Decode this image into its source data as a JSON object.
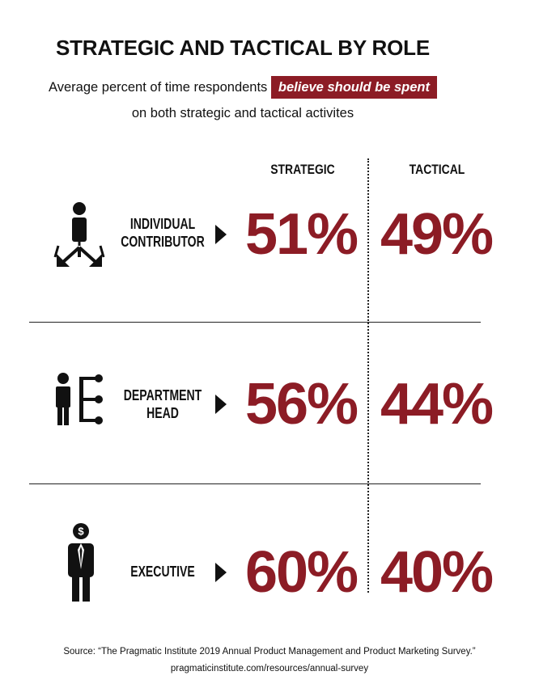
{
  "title": "STRATEGIC AND TACTICAL BY ROLE",
  "subtitle": {
    "before": "Average percent of time respondents",
    "highlight": "believe should be spent",
    "after": "on both strategic and tactical activites"
  },
  "colors": {
    "accent": "#8c1c25",
    "text": "#111111"
  },
  "chart_data": {
    "type": "table",
    "title": "STRATEGIC AND TACTICAL BY ROLE",
    "columns": [
      "STRATEGIC",
      "TACTICAL"
    ],
    "rows": [
      {
        "role_lines": [
          "INDIVIDUAL",
          "CONTRIBUTOR"
        ],
        "icon": "individual-contributor-icon",
        "values": [
          51,
          49
        ],
        "labels": [
          "51%",
          "49%"
        ]
      },
      {
        "role_lines": [
          "DEPARTMENT",
          "HEAD"
        ],
        "icon": "department-head-icon",
        "values": [
          56,
          44
        ],
        "labels": [
          "56%",
          "44%"
        ]
      },
      {
        "role_lines": [
          "EXECUTIVE"
        ],
        "icon": "executive-icon",
        "values": [
          60,
          40
        ],
        "labels": [
          "60%",
          "40%"
        ]
      }
    ],
    "unit": "%"
  },
  "source": {
    "line1": "Source: “The Pragmatic Institute 2019 Annual Product Management and Product Marketing Survey.”",
    "line2": "pragmaticinstitute.com/resources/annual-survey"
  }
}
